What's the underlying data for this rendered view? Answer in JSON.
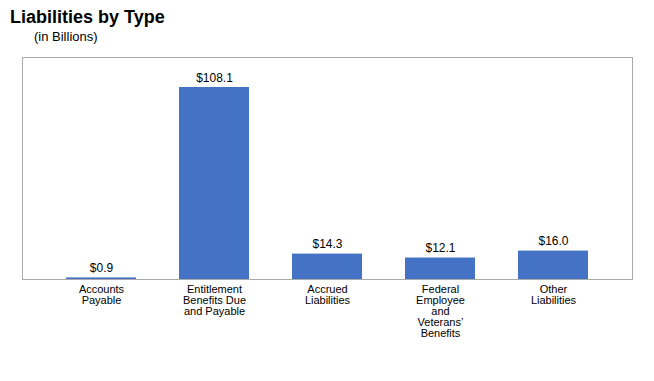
{
  "chart_data": {
    "type": "bar",
    "title": "Liabilities by Type",
    "subtitle": "(in Billions)",
    "categories": [
      "Accounts\nPayable",
      "Entitlement\nBenefits Due\nand Payable",
      "Accrued\nLiabilities",
      "Federal\nEmployee\nand\nVeterans’\nBenefits",
      "Other\nLiabilities"
    ],
    "values": [
      0.9,
      108.1,
      14.3,
      12.1,
      16.0
    ],
    "value_labels": [
      "$0.9",
      "$108.1",
      "$14.3",
      "$12.1",
      "$16.0"
    ],
    "data_labels": true,
    "color": "#4472C4",
    "ylim": [
      0,
      125
    ],
    "tick_labels": "x"
  }
}
